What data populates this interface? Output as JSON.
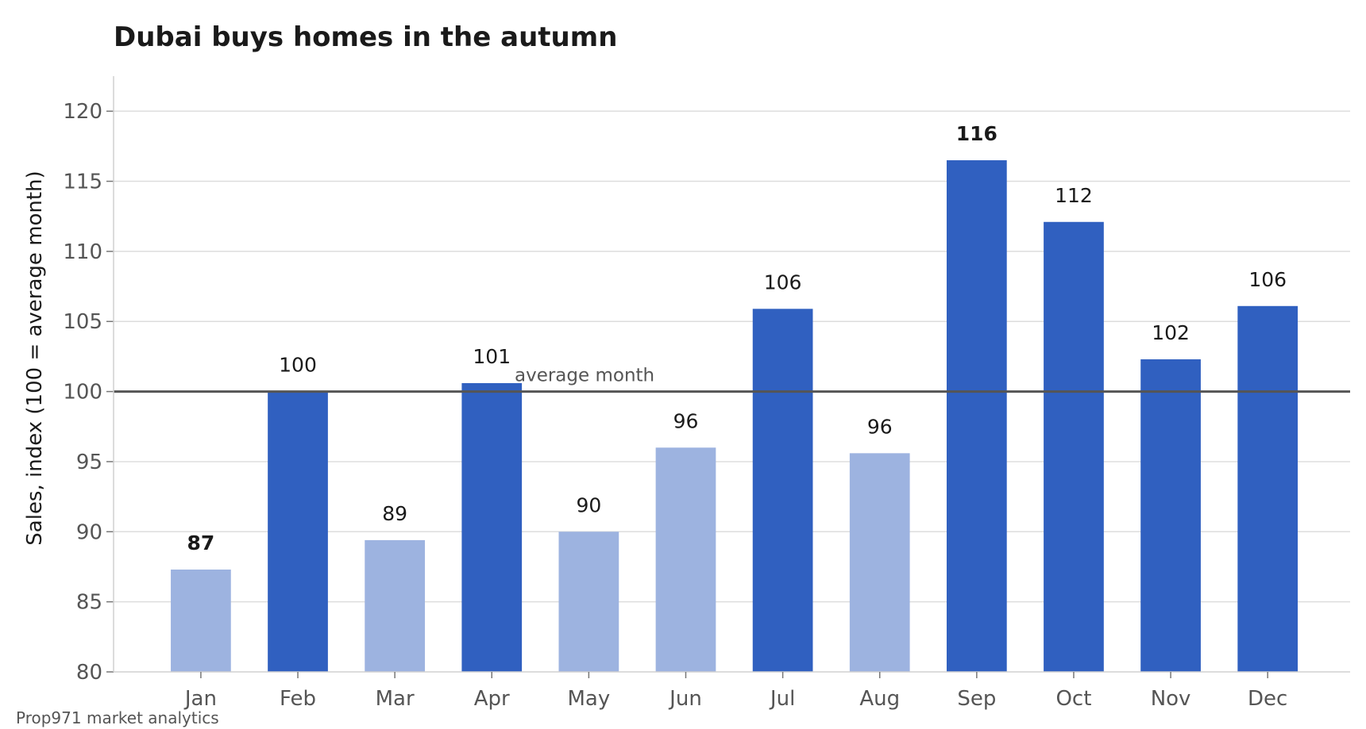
{
  "chart_data": {
    "type": "bar",
    "title": "Dubai buys homes in the autumn",
    "ylabel": "Sales, index (100 = average month)",
    "xlabel": "",
    "ylim": [
      80,
      122.5
    ],
    "yticks": [
      80,
      85,
      90,
      95,
      100,
      105,
      110,
      115,
      120
    ],
    "grid": true,
    "categories": [
      "Jan",
      "Feb",
      "Mar",
      "Apr",
      "May",
      "Jun",
      "Jul",
      "Aug",
      "Sep",
      "Oct",
      "Nov",
      "Dec"
    ],
    "values": [
      87.3,
      100.0,
      89.4,
      100.6,
      90.0,
      96.0,
      105.9,
      95.6,
      116.5,
      112.1,
      102.3,
      106.1
    ],
    "data_labels": [
      "87",
      "100",
      "89",
      "101",
      "90",
      "96",
      "106",
      "96",
      "116",
      "112",
      "102",
      "106"
    ],
    "bold_labels": [
      "Jan",
      "Sep"
    ],
    "reference_line": {
      "value": 100,
      "label": "average month"
    },
    "colors": {
      "above": "#3060c0",
      "below": "#9db3e0",
      "reference": "#555555",
      "grid": "#dddddd"
    },
    "source": "Prop971 market analytics"
  }
}
